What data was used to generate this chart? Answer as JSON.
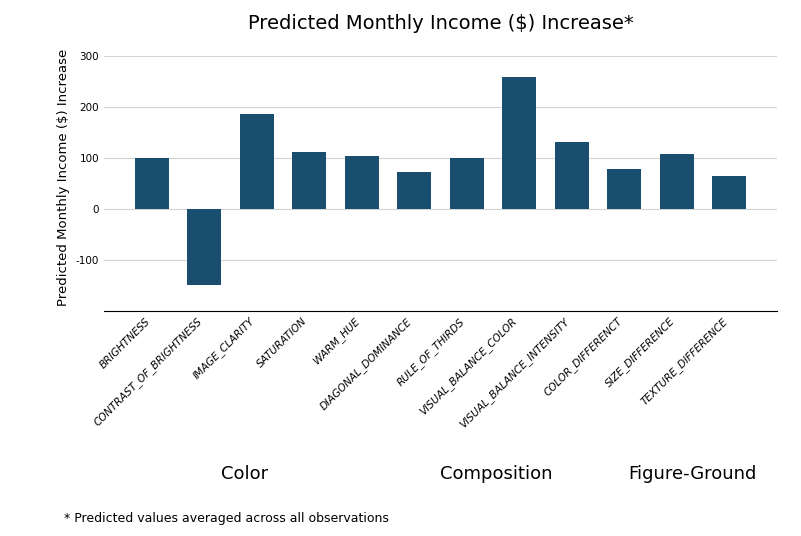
{
  "title": "Predicted Monthly Income ($) Increase*",
  "ylabel": "Predicted Monthly Income ($) Increase",
  "footnote": "* Predicted values averaged across all observations",
  "categories": [
    "BRIGHTNESS",
    "CONTRAST_OF_BRIGHTNESS",
    "IMAGE_CLARITY",
    "SATURATION",
    "WARM_HUE",
    "DIAGONAL_DOMINANCE",
    "RULE_OF_THIRDS",
    "VISUAL_BALANCE_COLOR",
    "VISUAL_BALANCE_INTENSITY",
    "COLOR_DIFFERENCT",
    "SIZE_DIFFERENCE",
    "TEXTURE_DIFFERENCE"
  ],
  "values": [
    100,
    -150,
    185,
    112,
    103,
    72,
    100,
    258,
    130,
    78,
    108,
    65
  ],
  "bar_color": "#1a4e6e",
  "ylim": [
    -200,
    325
  ],
  "yticks": [
    -100,
    0,
    100,
    200,
    300
  ],
  "group_labels": [
    "Color",
    "Composition",
    "Figure-Ground"
  ],
  "group_centers_idx": [
    2.0,
    6.5,
    10.0
  ],
  "title_fontsize": 14,
  "ylabel_fontsize": 9.5,
  "tick_fontsize": 7.5,
  "group_label_fontsize": 13,
  "footnote_fontsize": 9
}
